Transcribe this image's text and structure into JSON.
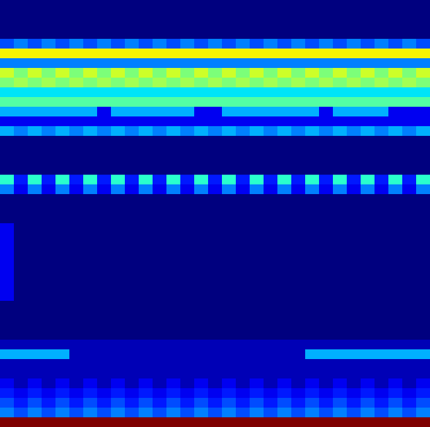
{
  "chart_data": {
    "type": "heatmap",
    "color": "jet",
    "tick_labels": false,
    "cells": [
      [
        0,
        0,
        0,
        0,
        0,
        0,
        0,
        0,
        0,
        0,
        0,
        0,
        0,
        0,
        0,
        0,
        0,
        0,
        0,
        0,
        0,
        0,
        0,
        0,
        0,
        0,
        0,
        0,
        0,
        0,
        0
      ],
      [
        0,
        0,
        0,
        0,
        0,
        0,
        0,
        0,
        0,
        0,
        0,
        0,
        0,
        0,
        0,
        0,
        0,
        0,
        0,
        0,
        0,
        0,
        0,
        0,
        0,
        0,
        0,
        0,
        0,
        0,
        0
      ],
      [
        0,
        0,
        0,
        0,
        0,
        0,
        0,
        0,
        0,
        0,
        0,
        0,
        0,
        0,
        0,
        0,
        0,
        0,
        0,
        0,
        0,
        0,
        0,
        0,
        0,
        0,
        0,
        0,
        0,
        0,
        0
      ],
      [
        0,
        0,
        0,
        0,
        0,
        0,
        0,
        0,
        0,
        0,
        0,
        0,
        0,
        0,
        0,
        0,
        0,
        0,
        0,
        0,
        0,
        0,
        0,
        0,
        0,
        0,
        0,
        0,
        0,
        0,
        0
      ],
      [
        0.2,
        0.25,
        0.2,
        0.25,
        0.2,
        0.25,
        0.2,
        0.25,
        0.2,
        0.25,
        0.2,
        0.25,
        0.2,
        0.25,
        0.2,
        0.25,
        0.2,
        0.25,
        0.2,
        0.25,
        0.2,
        0.25,
        0.2,
        0.25,
        0.2,
        0.25,
        0.2,
        0.25,
        0.2,
        0.25,
        0.2
      ],
      [
        0.65,
        0.65,
        0.65,
        0.65,
        0.65,
        0.65,
        0.65,
        0.65,
        0.65,
        0.65,
        0.65,
        0.65,
        0.65,
        0.65,
        0.65,
        0.65,
        0.65,
        0.65,
        0.65,
        0.65,
        0.65,
        0.65,
        0.65,
        0.65,
        0.65,
        0.65,
        0.65,
        0.65,
        0.65,
        0.65,
        0.65
      ],
      [
        0.25,
        0.25,
        0.25,
        0.25,
        0.25,
        0.25,
        0.25,
        0.25,
        0.25,
        0.25,
        0.25,
        0.25,
        0.25,
        0.25,
        0.25,
        0.25,
        0.25,
        0.25,
        0.25,
        0.25,
        0.25,
        0.25,
        0.25,
        0.25,
        0.25,
        0.25,
        0.25,
        0.25,
        0.25,
        0.25,
        0.25
      ],
      [
        0.6,
        0.5,
        0.6,
        0.5,
        0.6,
        0.5,
        0.6,
        0.5,
        0.6,
        0.5,
        0.6,
        0.5,
        0.6,
        0.5,
        0.6,
        0.5,
        0.6,
        0.5,
        0.6,
        0.5,
        0.6,
        0.5,
        0.6,
        0.5,
        0.6,
        0.5,
        0.6,
        0.5,
        0.6,
        0.5,
        0.6
      ],
      [
        0.5,
        0.55,
        0.5,
        0.55,
        0.5,
        0.55,
        0.5,
        0.55,
        0.5,
        0.55,
        0.5,
        0.55,
        0.5,
        0.55,
        0.5,
        0.55,
        0.5,
        0.55,
        0.5,
        0.55,
        0.5,
        0.55,
        0.5,
        0.55,
        0.5,
        0.55,
        0.5,
        0.55,
        0.5,
        0.55,
        0.5
      ],
      [
        0.35,
        0.35,
        0.35,
        0.35,
        0.35,
        0.35,
        0.35,
        0.35,
        0.35,
        0.35,
        0.35,
        0.35,
        0.35,
        0.35,
        0.35,
        0.35,
        0.35,
        0.35,
        0.35,
        0.35,
        0.35,
        0.35,
        0.35,
        0.35,
        0.35,
        0.35,
        0.35,
        0.35,
        0.35,
        0.35,
        0.35
      ],
      [
        0.45,
        0.45,
        0.45,
        0.45,
        0.45,
        0.45,
        0.45,
        0.45,
        0.45,
        0.45,
        0.45,
        0.45,
        0.45,
        0.45,
        0.45,
        0.45,
        0.45,
        0.45,
        0.45,
        0.45,
        0.45,
        0.45,
        0.45,
        0.45,
        0.45,
        0.45,
        0.45,
        0.45,
        0.45,
        0.45,
        0.45
      ],
      [
        0.3,
        0.3,
        0.3,
        0.3,
        0.3,
        0.3,
        0.3,
        0.1,
        0.3,
        0.3,
        0.3,
        0.3,
        0.3,
        0.3,
        0.1,
        0.1,
        0.3,
        0.3,
        0.3,
        0.3,
        0.3,
        0.3,
        0.3,
        0.1,
        0.3,
        0.3,
        0.3,
        0.3,
        0.1,
        0.1,
        0.1
      ],
      [
        0.1,
        0.1,
        0.1,
        0.1,
        0.1,
        0.1,
        0.1,
        0.1,
        0.1,
        0.1,
        0.1,
        0.1,
        0.1,
        0.1,
        0.1,
        0.1,
        0.1,
        0.1,
        0.1,
        0.1,
        0.1,
        0.1,
        0.1,
        0.1,
        0.1,
        0.1,
        0.1,
        0.1,
        0.1,
        0.1,
        0.1
      ],
      [
        0.3,
        0.25,
        0.3,
        0.25,
        0.3,
        0.25,
        0.3,
        0.25,
        0.3,
        0.25,
        0.3,
        0.25,
        0.3,
        0.25,
        0.3,
        0.25,
        0.3,
        0.25,
        0.3,
        0.25,
        0.3,
        0.25,
        0.3,
        0.25,
        0.3,
        0.25,
        0.3,
        0.25,
        0.3,
        0.25,
        0.3
      ],
      [
        0,
        0,
        0,
        0,
        0,
        0,
        0,
        0,
        0,
        0,
        0,
        0,
        0,
        0,
        0,
        0,
        0,
        0,
        0,
        0,
        0,
        0,
        0,
        0,
        0,
        0,
        0,
        0,
        0,
        0,
        0
      ],
      [
        0,
        0,
        0,
        0,
        0,
        0,
        0,
        0,
        0,
        0,
        0,
        0,
        0,
        0,
        0,
        0,
        0,
        0,
        0,
        0,
        0,
        0,
        0,
        0,
        0,
        0,
        0,
        0,
        0,
        0,
        0
      ],
      [
        0,
        0,
        0,
        0,
        0,
        0,
        0,
        0,
        0,
        0,
        0,
        0,
        0,
        0,
        0,
        0,
        0,
        0,
        0,
        0,
        0,
        0,
        0,
        0,
        0,
        0,
        0,
        0,
        0,
        0,
        0
      ],
      [
        0,
        0,
        0,
        0,
        0,
        0,
        0,
        0,
        0,
        0,
        0,
        0,
        0,
        0,
        0,
        0,
        0,
        0,
        0,
        0,
        0,
        0,
        0,
        0,
        0,
        0,
        0,
        0,
        0,
        0,
        0
      ],
      [
        0.4,
        0.15,
        0.4,
        0.15,
        0.4,
        0.15,
        0.4,
        0.15,
        0.4,
        0.15,
        0.4,
        0.15,
        0.4,
        0.15,
        0.4,
        0.15,
        0.4,
        0.15,
        0.4,
        0.15,
        0.4,
        0.15,
        0.4,
        0.15,
        0.4,
        0.15,
        0.4,
        0.15,
        0.4,
        0.15,
        0.4
      ],
      [
        0.25,
        0.1,
        0.25,
        0.1,
        0.25,
        0.1,
        0.25,
        0.1,
        0.25,
        0.1,
        0.25,
        0.1,
        0.25,
        0.1,
        0.25,
        0.1,
        0.25,
        0.1,
        0.25,
        0.1,
        0.25,
        0.1,
        0.25,
        0.1,
        0.25,
        0.1,
        0.25,
        0.1,
        0.25,
        0.1,
        0.25
      ],
      [
        0,
        0,
        0,
        0,
        0,
        0,
        0,
        0,
        0,
        0,
        0,
        0,
        0,
        0,
        0,
        0,
        0,
        0,
        0,
        0,
        0,
        0,
        0,
        0,
        0,
        0,
        0,
        0,
        0,
        0,
        0
      ],
      [
        0,
        0,
        0,
        0,
        0,
        0,
        0,
        0,
        0,
        0,
        0,
        0,
        0,
        0,
        0,
        0,
        0,
        0,
        0,
        0,
        0,
        0,
        0,
        0,
        0,
        0,
        0,
        0,
        0,
        0,
        0
      ],
      [
        0,
        0,
        0,
        0,
        0,
        0,
        0,
        0,
        0,
        0,
        0,
        0,
        0,
        0,
        0,
        0,
        0,
        0,
        0,
        0,
        0,
        0,
        0,
        0,
        0,
        0,
        0,
        0,
        0,
        0,
        0
      ],
      [
        0.1,
        0,
        0,
        0,
        0,
        0,
        0,
        0,
        0,
        0,
        0,
        0,
        0,
        0,
        0,
        0,
        0,
        0,
        0,
        0,
        0,
        0,
        0,
        0,
        0,
        0,
        0,
        0,
        0,
        0,
        0
      ],
      [
        0.1,
        0,
        0,
        0,
        0,
        0,
        0,
        0,
        0,
        0,
        0,
        0,
        0,
        0,
        0,
        0,
        0,
        0,
        0,
        0,
        0,
        0,
        0,
        0,
        0,
        0,
        0,
        0,
        0,
        0,
        0
      ],
      [
        0.1,
        0,
        0,
        0,
        0,
        0,
        0,
        0,
        0,
        0,
        0,
        0,
        0,
        0,
        0,
        0,
        0,
        0,
        0,
        0,
        0,
        0,
        0,
        0,
        0,
        0,
        0,
        0,
        0,
        0,
        0
      ],
      [
        0.1,
        0,
        0,
        0,
        0,
        0,
        0,
        0,
        0,
        0,
        0,
        0,
        0,
        0,
        0,
        0,
        0,
        0,
        0,
        0,
        0,
        0,
        0,
        0,
        0,
        0,
        0,
        0,
        0,
        0,
        0
      ],
      [
        0.1,
        0,
        0,
        0,
        0,
        0,
        0,
        0,
        0,
        0,
        0,
        0,
        0,
        0,
        0,
        0,
        0,
        0,
        0,
        0,
        0,
        0,
        0,
        0,
        0,
        0,
        0,
        0,
        0,
        0,
        0
      ],
      [
        0.1,
        0,
        0,
        0,
        0,
        0,
        0,
        0,
        0,
        0,
        0,
        0,
        0,
        0,
        0,
        0,
        0,
        0,
        0,
        0,
        0,
        0,
        0,
        0,
        0,
        0,
        0,
        0,
        0,
        0,
        0
      ],
      [
        0.1,
        0,
        0,
        0,
        0,
        0,
        0,
        0,
        0,
        0,
        0,
        0,
        0,
        0,
        0,
        0,
        0,
        0,
        0,
        0,
        0,
        0,
        0,
        0,
        0,
        0,
        0,
        0,
        0,
        0,
        0
      ],
      [
        0.1,
        0,
        0,
        0,
        0,
        0,
        0,
        0,
        0,
        0,
        0,
        0,
        0,
        0,
        0,
        0,
        0,
        0,
        0,
        0,
        0,
        0,
        0,
        0,
        0,
        0,
        0,
        0,
        0,
        0,
        0
      ],
      [
        0,
        0,
        0,
        0,
        0,
        0,
        0,
        0,
        0,
        0,
        0,
        0,
        0,
        0,
        0,
        0,
        0,
        0,
        0,
        0,
        0,
        0,
        0,
        0,
        0,
        0,
        0,
        0,
        0,
        0,
        0
      ],
      [
        0,
        0,
        0,
        0,
        0,
        0,
        0,
        0,
        0,
        0,
        0,
        0,
        0,
        0,
        0,
        0,
        0,
        0,
        0,
        0,
        0,
        0,
        0,
        0,
        0,
        0,
        0,
        0,
        0,
        0,
        0
      ],
      [
        0,
        0,
        0,
        0,
        0,
        0,
        0,
        0,
        0,
        0,
        0,
        0,
        0,
        0,
        0,
        0,
        0,
        0,
        0,
        0,
        0,
        0,
        0,
        0,
        0,
        0,
        0,
        0,
        0,
        0,
        0
      ],
      [
        0,
        0,
        0,
        0,
        0,
        0,
        0,
        0,
        0,
        0,
        0,
        0,
        0,
        0,
        0,
        0,
        0,
        0,
        0,
        0,
        0,
        0,
        0,
        0,
        0,
        0,
        0,
        0,
        0,
        0,
        0
      ],
      [
        0.05,
        0.05,
        0.05,
        0.05,
        0.05,
        0.05,
        0.05,
        0.05,
        0.05,
        0.05,
        0.05,
        0.05,
        0.05,
        0.05,
        0.05,
        0.05,
        0.05,
        0.05,
        0.05,
        0.05,
        0.05,
        0.05,
        0.05,
        0.05,
        0.05,
        0.05,
        0.05,
        0.05,
        0.05,
        0.05,
        0.05
      ],
      [
        0.3,
        0.3,
        0.3,
        0.3,
        0.3,
        0.05,
        0.05,
        0.05,
        0.05,
        0.05,
        0.05,
        0.05,
        0.05,
        0.05,
        0.05,
        0.05,
        0.05,
        0.05,
        0.05,
        0.05,
        0.05,
        0.05,
        0.3,
        0.3,
        0.3,
        0.3,
        0.3,
        0.3,
        0.3,
        0.3,
        0.3
      ],
      [
        0.05,
        0.05,
        0.05,
        0.05,
        0.05,
        0.05,
        0.05,
        0.05,
        0.05,
        0.05,
        0.05,
        0.05,
        0.05,
        0.05,
        0.05,
        0.05,
        0.05,
        0.05,
        0.05,
        0.05,
        0.05,
        0.05,
        0.05,
        0.05,
        0.05,
        0.05,
        0.05,
        0.05,
        0.05,
        0.05,
        0.05
      ],
      [
        0.05,
        0.05,
        0.05,
        0.05,
        0.05,
        0.05,
        0.05,
        0.05,
        0.05,
        0.05,
        0.05,
        0.05,
        0.05,
        0.05,
        0.05,
        0.05,
        0.05,
        0.05,
        0.05,
        0.05,
        0.05,
        0.05,
        0.05,
        0.05,
        0.05,
        0.05,
        0.05,
        0.05,
        0.05,
        0.05,
        0.05
      ],
      [
        0.1,
        0.05,
        0.1,
        0.05,
        0.1,
        0.05,
        0.1,
        0.05,
        0.1,
        0.05,
        0.1,
        0.05,
        0.1,
        0.05,
        0.1,
        0.05,
        0.1,
        0.05,
        0.1,
        0.05,
        0.1,
        0.05,
        0.1,
        0.05,
        0.1,
        0.05,
        0.1,
        0.05,
        0.1,
        0.05,
        0.1
      ],
      [
        0.15,
        0.1,
        0.15,
        0.1,
        0.15,
        0.1,
        0.15,
        0.1,
        0.15,
        0.1,
        0.15,
        0.1,
        0.15,
        0.1,
        0.15,
        0.1,
        0.15,
        0.1,
        0.15,
        0.1,
        0.15,
        0.1,
        0.15,
        0.1,
        0.15,
        0.1,
        0.15,
        0.1,
        0.15,
        0.1,
        0.15
      ],
      [
        0.2,
        0.15,
        0.2,
        0.15,
        0.2,
        0.15,
        0.2,
        0.15,
        0.2,
        0.15,
        0.2,
        0.15,
        0.2,
        0.15,
        0.2,
        0.15,
        0.2,
        0.15,
        0.2,
        0.15,
        0.2,
        0.15,
        0.2,
        0.15,
        0.2,
        0.15,
        0.2,
        0.15,
        0.2,
        0.15,
        0.2
      ],
      [
        0.25,
        0.2,
        0.25,
        0.2,
        0.25,
        0.2,
        0.25,
        0.2,
        0.25,
        0.2,
        0.25,
        0.2,
        0.25,
        0.2,
        0.25,
        0.2,
        0.25,
        0.2,
        0.25,
        0.2,
        0.25,
        0.2,
        0.25,
        0.2,
        0.25,
        0.2,
        0.25,
        0.2,
        0.25,
        0.2,
        0.25
      ],
      [
        1,
        1,
        1,
        1,
        1,
        1,
        1,
        1,
        1,
        1,
        1,
        1,
        1,
        1,
        1,
        1,
        1,
        1,
        1,
        1,
        1,
        1,
        1,
        1,
        1,
        1,
        1,
        1,
        1,
        1,
        1
      ]
    ]
  }
}
